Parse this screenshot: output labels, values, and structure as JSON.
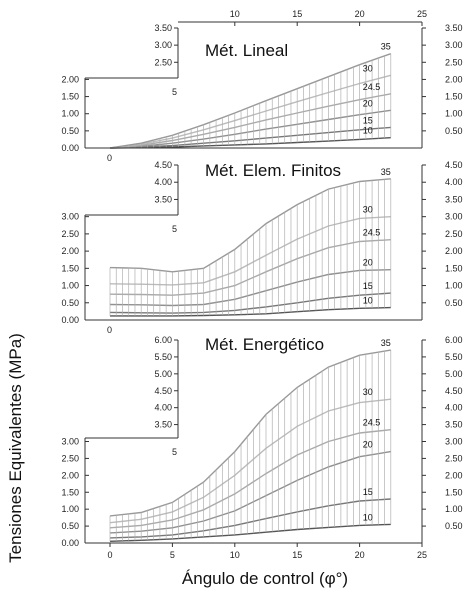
{
  "figure": {
    "ylabel": "Tensiones Equivalentes  (MPa)",
    "xlabel": "Ángulo de control (φ°)",
    "top_xticks": [
      "10",
      "15",
      "20",
      "25"
    ],
    "bottom_xticks": [
      "0",
      "5",
      "10",
      "15",
      "20",
      "25"
    ],
    "bottom_right_tick": "35",
    "bottom_left_tick": "0",
    "step_mark": "5"
  },
  "chart_data": [
    {
      "type": "line",
      "title": "Mét. Lineal",
      "x": [
        0,
        2.5,
        5,
        7.5,
        10,
        12.5,
        15,
        17.5,
        20,
        22.5
      ],
      "ylim": [
        0,
        3.5
      ],
      "yticks_right": [
        "3.50",
        "3.00",
        "2.50",
        "2.00",
        "1.50",
        "1.00",
        "0.50"
      ],
      "yticks_left_upper": [
        "3.50",
        "3.00",
        "2.50"
      ],
      "yticks_left_lower": [
        "2.00",
        "1.50",
        "1.00",
        "0.50",
        "0.00"
      ],
      "series": [
        {
          "name": "10",
          "color": "#555555",
          "values": [
            0.0,
            0.01,
            0.03,
            0.06,
            0.09,
            0.12,
            0.16,
            0.2,
            0.25,
            0.3
          ]
        },
        {
          "name": "15",
          "color": "#777777",
          "values": [
            0.0,
            0.03,
            0.07,
            0.14,
            0.21,
            0.29,
            0.37,
            0.45,
            0.53,
            0.6
          ]
        },
        {
          "name": "20",
          "color": "#909090",
          "values": [
            0.0,
            0.05,
            0.14,
            0.26,
            0.4,
            0.55,
            0.69,
            0.83,
            0.97,
            1.1
          ]
        },
        {
          "name": "24.5",
          "color": "#aaaaaa",
          "values": [
            0.0,
            0.08,
            0.22,
            0.4,
            0.6,
            0.82,
            1.02,
            1.22,
            1.41,
            1.58
          ]
        },
        {
          "name": "30",
          "color": "#bbbbbb",
          "values": [
            0.0,
            0.11,
            0.29,
            0.53,
            0.8,
            1.08,
            1.35,
            1.62,
            1.88,
            2.12
          ]
        },
        {
          "name": "35",
          "color": "#999999",
          "values": [
            0.0,
            0.14,
            0.37,
            0.68,
            1.02,
            1.38,
            1.73,
            2.08,
            2.43,
            2.75
          ]
        }
      ]
    },
    {
      "type": "line",
      "title": "Mét. Elem. Finitos",
      "x": [
        0,
        2.5,
        5,
        7.5,
        10,
        12.5,
        15,
        17.5,
        20,
        22.5
      ],
      "ylim": [
        0,
        4.5
      ],
      "yticks_right": [
        "4.50",
        "4.00",
        "3.50",
        "3.00",
        "2.50",
        "2.00",
        "1.50",
        "1.00",
        "0.50"
      ],
      "yticks_left_upper": [
        "5.00",
        "4.50",
        "4.00",
        "3.50"
      ],
      "yticks_left_lower": [
        "3.00",
        "2.50",
        "2.00",
        "1.50",
        "1.00",
        "0.50",
        "0.00"
      ],
      "series": [
        {
          "name": "10",
          "color": "#555555",
          "values": [
            0.12,
            0.12,
            0.12,
            0.13,
            0.15,
            0.18,
            0.24,
            0.3,
            0.34,
            0.36
          ]
        },
        {
          "name": "15",
          "color": "#777777",
          "values": [
            0.22,
            0.21,
            0.2,
            0.22,
            0.28,
            0.38,
            0.5,
            0.63,
            0.72,
            0.78
          ]
        },
        {
          "name": "20",
          "color": "#909090",
          "values": [
            0.45,
            0.44,
            0.42,
            0.45,
            0.6,
            0.85,
            1.1,
            1.32,
            1.44,
            1.46
          ]
        },
        {
          "name": "24.5",
          "color": "#aaaaaa",
          "values": [
            0.75,
            0.74,
            0.72,
            0.78,
            1.0,
            1.4,
            1.78,
            2.1,
            2.28,
            2.33
          ]
        },
        {
          "name": "30",
          "color": "#bbbbbb",
          "values": [
            1.05,
            1.04,
            1.02,
            1.08,
            1.4,
            1.88,
            2.35,
            2.73,
            2.95,
            3.0
          ]
        },
        {
          "name": "35",
          "color": "#999999",
          "values": [
            1.52,
            1.5,
            1.4,
            1.5,
            2.05,
            2.8,
            3.35,
            3.8,
            4.02,
            4.1
          ]
        }
      ]
    },
    {
      "type": "line",
      "title": "Mét. Energético",
      "x": [
        0,
        2.5,
        5,
        7.5,
        10,
        12.5,
        15,
        17.5,
        20,
        22.5
      ],
      "ylim": [
        0,
        6.0
      ],
      "yticks_right": [
        "6.00",
        "5.50",
        "5.00",
        "4.50",
        "4.00",
        "3.50",
        "3.00",
        "2.50",
        "2.00",
        "1.50",
        "1.00",
        "0.50"
      ],
      "yticks_left_upper": [
        "6.50",
        "6.00",
        "5.50",
        "5.00",
        "4.50",
        "4.00",
        "3.50"
      ],
      "yticks_left_lower": [
        "3.00",
        "2.50",
        "2.00",
        "1.50",
        "1.00",
        "0.50",
        "0.00"
      ],
      "series": [
        {
          "name": "10",
          "color": "#555555",
          "values": [
            0.05,
            0.08,
            0.12,
            0.18,
            0.24,
            0.32,
            0.4,
            0.46,
            0.52,
            0.55
          ]
        },
        {
          "name": "15",
          "color": "#777777",
          "values": [
            0.15,
            0.18,
            0.24,
            0.36,
            0.52,
            0.72,
            0.92,
            1.1,
            1.24,
            1.3
          ]
        },
        {
          "name": "20",
          "color": "#909090",
          "values": [
            0.3,
            0.35,
            0.45,
            0.65,
            0.95,
            1.4,
            1.85,
            2.25,
            2.55,
            2.7
          ]
        },
        {
          "name": "24.5",
          "color": "#aaaaaa",
          "values": [
            0.45,
            0.52,
            0.68,
            0.98,
            1.45,
            2.05,
            2.6,
            3.0,
            3.25,
            3.35
          ]
        },
        {
          "name": "30",
          "color": "#bbbbbb",
          "values": [
            0.6,
            0.7,
            0.92,
            1.35,
            2.0,
            2.8,
            3.45,
            3.9,
            4.15,
            4.25
          ]
        },
        {
          "name": "35",
          "color": "#999999",
          "values": [
            0.8,
            0.9,
            1.2,
            1.8,
            2.7,
            3.8,
            4.6,
            5.2,
            5.55,
            5.7
          ]
        }
      ]
    }
  ]
}
